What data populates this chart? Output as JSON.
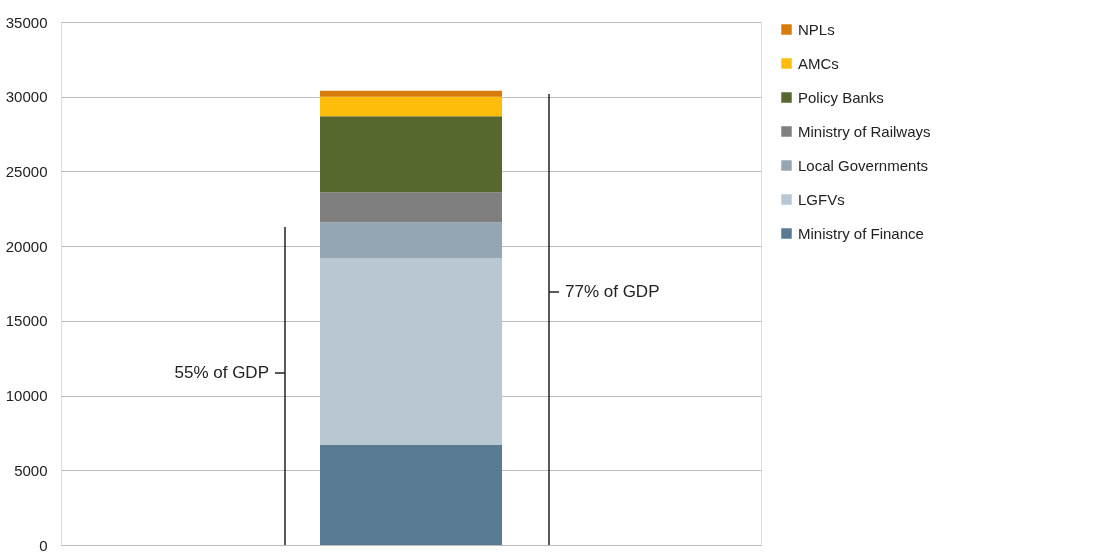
{
  "chart_data": {
    "type": "bar",
    "stacked": true,
    "categories": [
      null
    ],
    "series": [
      {
        "name": "Ministry of Finance",
        "color": "#587b93",
        "values": [
          6700
        ]
      },
      {
        "name": "LGFVs",
        "color": "#b8c7d2",
        "values": [
          12500
        ]
      },
      {
        "name": "Local Governments",
        "color": "#95a5b2",
        "values": [
          2400
        ]
      },
      {
        "name": "Ministry of Railways",
        "color": "#7f7f7f",
        "values": [
          2000
        ]
      },
      {
        "name": "Policy Banks",
        "color": "#56682e",
        "values": [
          5100
        ]
      },
      {
        "name": "AMCs",
        "color": "#fdbd0a",
        "values": [
          1300
        ]
      },
      {
        "name": "NPLs",
        "color": "#d67c0b",
        "values": [
          400
        ]
      }
    ],
    "ylim": [
      0,
      35000
    ],
    "yticks": [
      0,
      5000,
      10000,
      15000,
      20000,
      25000,
      30000,
      35000
    ],
    "grid": "y",
    "legend": "right",
    "tick_labels": "y",
    "annotations": [
      "55% of GDP",
      "77% of GDP"
    ]
  }
}
